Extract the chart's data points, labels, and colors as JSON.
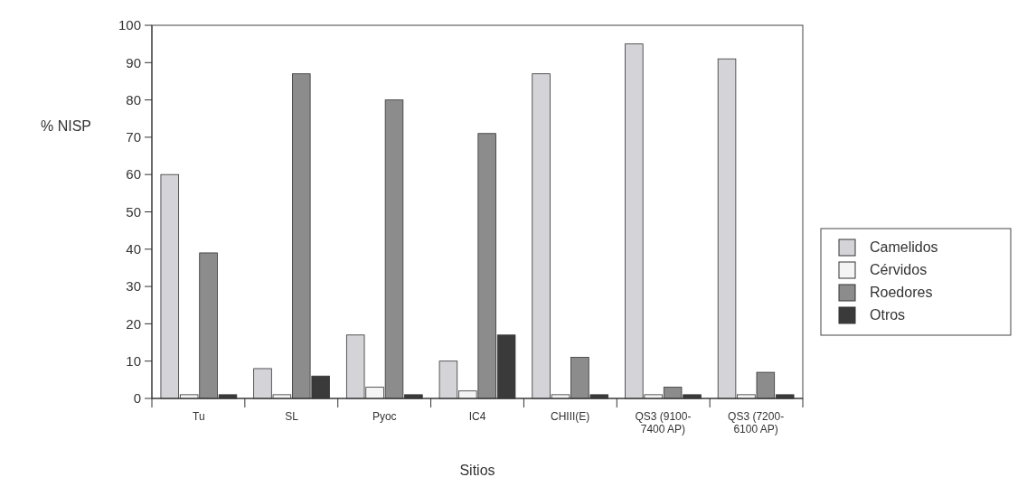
{
  "chart_data": {
    "type": "bar",
    "xlabel": "Sitios",
    "ylabel": "% NISP",
    "categories": [
      "Tu",
      "SL",
      "Pyoc",
      "IC4",
      "CHIII(E)",
      "QS3 (9100-7400 AP)",
      "QS3 (7200-6100 AP)"
    ],
    "series": [
      {
        "name": "Camelidos",
        "color": "#d4d4d8",
        "values": [
          60,
          8,
          17,
          10,
          87,
          95,
          91
        ]
      },
      {
        "name": "Cérvidos",
        "color": "#f4f4f4",
        "values": [
          1,
          1,
          3,
          2,
          1,
          1,
          1
        ]
      },
      {
        "name": "Roedores",
        "color": "#8c8c8c",
        "values": [
          39,
          87,
          80,
          71,
          11,
          3,
          7
        ]
      },
      {
        "name": "Otros",
        "color": "#3a3a3a",
        "values": [
          1,
          6,
          1,
          17,
          1,
          1,
          1
        ]
      }
    ],
    "ylim": [
      0,
      100
    ],
    "yticks": [
      0,
      10,
      20,
      30,
      40,
      50,
      60,
      70,
      80,
      90,
      100
    ],
    "grid": false,
    "legend": "right"
  }
}
